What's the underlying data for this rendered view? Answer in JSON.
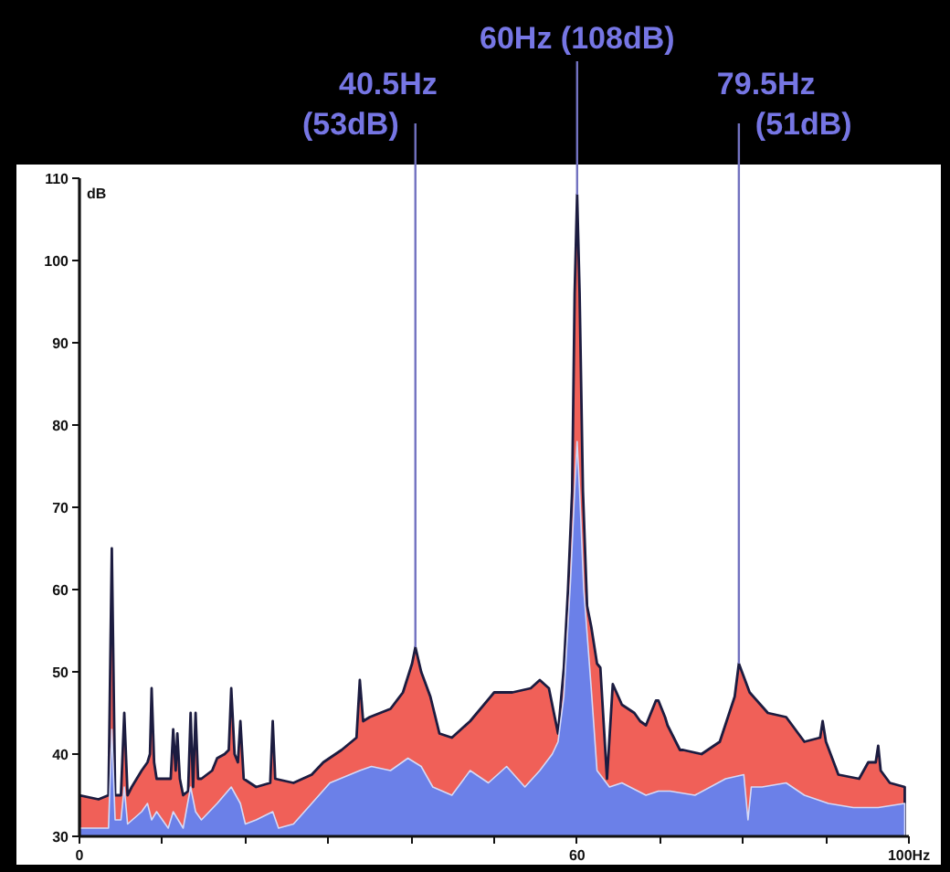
{
  "chart_data": {
    "type": "area",
    "ylabel": "dB",
    "xlim": [
      0,
      100
    ],
    "ylim": [
      30,
      110
    ],
    "xticks": [
      0,
      {
        "value": 10,
        "label": null
      },
      {
        "value": 20,
        "label": null
      },
      {
        "value": 30,
        "label": null
      },
      {
        "value": 40,
        "label": null
      },
      {
        "value": 50,
        "label": null
      },
      60,
      {
        "value": 70,
        "label": null
      },
      {
        "value": 80,
        "label": null
      },
      {
        "value": 90,
        "label": null
      },
      {
        "value": 100,
        "label": "100Hz"
      }
    ],
    "yticks": [
      30,
      40,
      50,
      60,
      70,
      80,
      90,
      100,
      110
    ],
    "grid": false,
    "series": [
      {
        "color": "#f06058",
        "x": [
          0,
          2.3,
          3.5,
          3.9,
          4.3,
          5.0,
          5.4,
          5.8,
          6.3,
          7.5,
          8.2,
          8.5,
          8.7,
          9.0,
          9.3,
          10.7,
          11.0,
          11.3,
          11.6,
          11.8,
          12.1,
          12.5,
          13.1,
          13.4,
          13.7,
          14.0,
          14.3,
          14.7,
          16.0,
          16.6,
          17.5,
          18.0,
          18.3,
          18.7,
          19.1,
          19.4,
          19.8,
          21.3,
          23.0,
          23.3,
          23.6,
          25.8,
          28.0,
          29.4,
          31.6,
          33.4,
          33.8,
          34.2,
          35.0,
          37.5,
          39.0,
          40.1,
          40.5,
          41.2,
          42.3,
          43.4,
          44.9,
          47.1,
          50.0,
          52.2,
          54.4,
          55.5,
          56.6,
          57.7,
          58.4,
          58.9,
          59.4,
          59.7,
          60.0,
          60.3,
          60.7,
          61.2,
          61.7,
          62.4,
          62.8,
          63.6,
          64.3,
          65.4,
          66.9,
          67.6,
          68.3,
          69.5,
          69.8,
          70.6,
          70.9,
          72.4,
          72.8,
          75.0,
          77.2,
          79.0,
          79.5,
          80.8,
          83.0,
          85.2,
          87.4,
          89.3,
          89.6,
          90.0,
          91.5,
          94.0,
          95.1,
          96.0,
          96.3,
          96.6,
          97.7,
          99.5
        ],
        "values": [
          35,
          34.5,
          35,
          65,
          35,
          35,
          45,
          35,
          36,
          38,
          39,
          40,
          48,
          39,
          37,
          37,
          37,
          43,
          38,
          42.5,
          37,
          35,
          35.5,
          45,
          36,
          45,
          37,
          37,
          38,
          39.5,
          40,
          40.5,
          48,
          40,
          39,
          44,
          37,
          36,
          36.5,
          44,
          37,
          36.5,
          37.5,
          39,
          40.5,
          42,
          49,
          44,
          44.5,
          45.5,
          47.5,
          51,
          53,
          50,
          47,
          42.5,
          42,
          44,
          47.5,
          47.5,
          48,
          49,
          48,
          42.5,
          50.5,
          60,
          72,
          96,
          108,
          96,
          72,
          58,
          55.5,
          51,
          50.5,
          37,
          48.5,
          46,
          45,
          44,
          43.5,
          46.5,
          46.5,
          44.5,
          43.5,
          40.5,
          40.5,
          40,
          41.5,
          47,
          51,
          47.5,
          45,
          44.5,
          41.5,
          42,
          44,
          41.5,
          37.5,
          37,
          39,
          39,
          41,
          38,
          36.5,
          36
        ]
      },
      {
        "color": "#6b80e8",
        "x": [
          0,
          2.3,
          3.5,
          3.9,
          4.3,
          5.0,
          5.4,
          5.8,
          7.5,
          8.2,
          8.7,
          9.3,
          10.7,
          11.3,
          12.5,
          13.4,
          14.0,
          14.7,
          16.6,
          18.3,
          19.4,
          20.0,
          21.3,
          23.3,
          24.0,
          25.8,
          28.0,
          30.2,
          33.8,
          35.2,
          37.5,
          39.6,
          41.2,
          42.6,
          44.9,
          47.1,
          49.3,
          51.5,
          53.7,
          55.5,
          57.0,
          57.7,
          58.4,
          59.2,
          59.7,
          60.0,
          60.3,
          60.8,
          61.7,
          62.4,
          63.9,
          65.4,
          68.3,
          69.8,
          71.2,
          74.2,
          77.9,
          80.1,
          80.6,
          81.0,
          82.3,
          85.2,
          87.4,
          90.3,
          93.3,
          96.3,
          99.5
        ],
        "values": [
          31,
          31,
          31,
          43,
          32,
          32,
          36,
          31.5,
          33,
          34,
          32,
          33,
          31,
          33,
          31,
          36,
          33,
          32,
          34,
          36,
          34,
          31.5,
          32,
          33,
          31,
          31.5,
          34,
          36.5,
          38,
          38.5,
          38,
          39.5,
          38.5,
          36,
          35,
          38,
          36.5,
          38.5,
          36,
          38,
          40,
          41.5,
          47,
          61,
          72,
          78,
          72,
          60,
          48,
          38,
          36,
          36.5,
          35,
          35.5,
          35.5,
          35,
          37,
          37.5,
          32,
          36,
          36,
          36.5,
          35,
          34,
          33.5,
          33.5,
          34
        ]
      }
    ],
    "annotations": [
      {
        "text": "40.5Hz\n(53dB)",
        "x": 40.5,
        "y": 53
      },
      {
        "text": "60Hz (108dB)",
        "x": 60,
        "y": 108
      },
      {
        "text": "79.5Hz\n(51dB)",
        "x": 79.5,
        "y": 51
      }
    ]
  }
}
